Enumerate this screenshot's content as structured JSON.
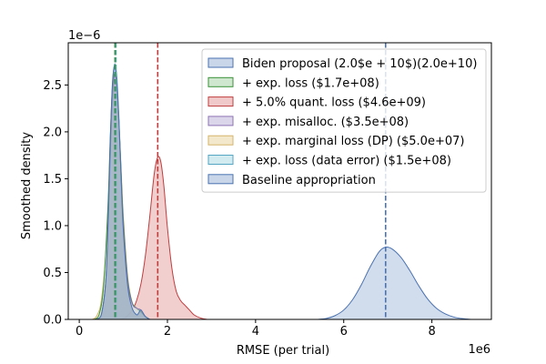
{
  "chart_data": {
    "type": "area",
    "title": "",
    "xlabel": "RMSE (per trial)",
    "ylabel": "Smoothed density",
    "x_offset_label": "1e6",
    "y_offset_label": "1e−6",
    "xlim": [
      -0.25,
      9.35
    ],
    "ylim": [
      0,
      2.95
    ],
    "x_unit_multiplier": 1000000,
    "y_unit_multiplier": 1e-06,
    "x_ticks": [
      0,
      2,
      4,
      6,
      8
    ],
    "x_tick_labels": [
      "0",
      "2",
      "4",
      "6",
      "8"
    ],
    "y_ticks": [
      0.0,
      0.5,
      1.0,
      1.5,
      2.0,
      2.5
    ],
    "y_tick_labels": [
      "0.0",
      "0.5",
      "1.0",
      "1.5",
      "2.0",
      "2.5"
    ],
    "legend_position": "top-right",
    "legend": [
      {
        "label": "Biden proposal (2.0$e + 10$)(2.0e+10)",
        "fill": "#c9d6ea",
        "stroke": "#4a72b0"
      },
      {
        "label": "+ exp. loss ($1.7e+08)",
        "fill": "#cfe6cf",
        "stroke": "#3a923a"
      },
      {
        "label": "+ 5.0% quant. loss ($4.6e+09)",
        "fill": "#f0caca",
        "stroke": "#c03d3e"
      },
      {
        "label": "+ exp. misalloc. ($3.5e+08)",
        "fill": "#dcd6ea",
        "stroke": "#8c73b4"
      },
      {
        "label": "+ exp. marginal loss (DP) ($5.0e+07)",
        "fill": "#f3e8cc",
        "stroke": "#d4b46a"
      },
      {
        "label": "+ exp. loss (data error) ($1.5e+08)",
        "fill": "#d1ebf1",
        "stroke": "#54a6c2"
      },
      {
        "label": "Baseline appropriation",
        "fill": "#c9d6ea",
        "stroke": "#4a72b0"
      }
    ],
    "series": [
      {
        "name": "Biden proposal (2.0$e + 10$)(2.0e+10)",
        "color": "#4a72b0",
        "fill": "#c9d6ea",
        "fill_opacity": 0.85,
        "x": [
          5.4,
          5.6,
          5.8,
          6.0,
          6.2,
          6.4,
          6.6,
          6.8,
          6.95,
          7.1,
          7.3,
          7.5,
          7.7,
          7.9,
          8.1,
          8.3,
          8.5,
          8.7,
          8.9
        ],
        "y": [
          0.0,
          0.01,
          0.04,
          0.1,
          0.21,
          0.37,
          0.56,
          0.72,
          0.77,
          0.75,
          0.66,
          0.52,
          0.36,
          0.22,
          0.12,
          0.06,
          0.025,
          0.008,
          0.0
        ]
      },
      {
        "name": "+ 5.0% quant. loss ($4.6e+09)",
        "color": "#c03d3e",
        "fill": "#f0caca",
        "fill_opacity": 0.9,
        "x": [
          0.9,
          1.05,
          1.2,
          1.3,
          1.4,
          1.5,
          1.6,
          1.7,
          1.78,
          1.85,
          1.92,
          2.0,
          2.1,
          2.2,
          2.3,
          2.4,
          2.5,
          2.6,
          2.75,
          2.9
        ],
        "y": [
          0.0,
          0.02,
          0.1,
          0.2,
          0.38,
          0.68,
          1.1,
          1.55,
          1.73,
          1.68,
          1.42,
          0.98,
          0.55,
          0.3,
          0.2,
          0.15,
          0.1,
          0.05,
          0.015,
          0.0
        ]
      },
      {
        "name": "+ exp. marginal loss (DP) ($5.0e+07)",
        "color": "#d4b46a",
        "fill": "#f3e8cc",
        "fill_opacity": 0.55,
        "x": [
          0.3,
          0.4,
          0.5,
          0.6,
          0.7,
          0.75,
          0.8,
          0.85,
          0.9,
          0.95,
          1.0,
          1.1,
          1.2,
          1.3,
          1.4,
          1.5,
          1.6
        ],
        "y": [
          0.0,
          0.04,
          0.2,
          0.7,
          1.7,
          2.25,
          2.5,
          2.45,
          2.1,
          1.6,
          1.1,
          0.45,
          0.18,
          0.1,
          0.07,
          0.03,
          0.0
        ]
      },
      {
        "name": "+ exp. loss (data error) ($1.5e+08)",
        "color": "#54a6c2",
        "fill": "#d1ebf1",
        "fill_opacity": 0.55,
        "x": [
          0.4,
          0.5,
          0.6,
          0.65,
          0.7,
          0.75,
          0.8,
          0.85,
          0.9,
          0.95,
          1.0,
          1.1,
          1.2,
          1.3,
          1.4,
          1.5,
          1.6
        ],
        "y": [
          0.0,
          0.05,
          0.4,
          0.9,
          1.7,
          2.45,
          2.72,
          2.6,
          2.15,
          1.55,
          1.0,
          0.4,
          0.17,
          0.12,
          0.08,
          0.03,
          0.0
        ]
      },
      {
        "name": "+ exp. loss ($1.7e+08)",
        "color": "#3a923a",
        "fill": "#cfe6cf",
        "fill_opacity": 0.45,
        "x": [
          0.35,
          0.45,
          0.55,
          0.65,
          0.7,
          0.75,
          0.8,
          0.85,
          0.9,
          0.95,
          1.0,
          1.1,
          1.2,
          1.3,
          1.4,
          1.5,
          1.6
        ],
        "y": [
          0.0,
          0.05,
          0.35,
          1.2,
          1.9,
          2.45,
          2.62,
          2.5,
          2.1,
          1.55,
          1.05,
          0.42,
          0.18,
          0.12,
          0.08,
          0.03,
          0.0
        ]
      },
      {
        "name": "+ exp. misalloc. ($3.5e+08)",
        "color": "#8c73b4",
        "fill": "#dcd6ea",
        "fill_opacity": 0.45,
        "x": [
          0.4,
          0.5,
          0.6,
          0.65,
          0.7,
          0.75,
          0.8,
          0.85,
          0.9,
          0.95,
          1.0,
          1.1,
          1.2,
          1.3,
          1.4,
          1.5,
          1.6
        ],
        "y": [
          0.0,
          0.05,
          0.4,
          0.95,
          1.75,
          2.35,
          2.6,
          2.5,
          2.1,
          1.5,
          1.0,
          0.4,
          0.17,
          0.12,
          0.1,
          0.03,
          0.0
        ]
      },
      {
        "name": "Baseline appropriation",
        "color": "#4a72b0",
        "fill": "#7d96b3",
        "fill_opacity": 0.55,
        "x": [
          0.4,
          0.5,
          0.6,
          0.65,
          0.7,
          0.75,
          0.8,
          0.85,
          0.9,
          0.95,
          1.0,
          1.1,
          1.2,
          1.3,
          1.35,
          1.4,
          1.5,
          1.6
        ],
        "y": [
          0.0,
          0.05,
          0.4,
          1.0,
          1.85,
          2.5,
          2.7,
          2.55,
          2.1,
          1.5,
          0.95,
          0.35,
          0.12,
          0.05,
          0.07,
          0.1,
          0.03,
          0.0
        ]
      }
    ],
    "reference_lines": [
      {
        "x": 6.95,
        "color": "#4a72b0",
        "style": "dashed"
      },
      {
        "x": 1.78,
        "color": "#c03d3e",
        "style": "dashed"
      },
      {
        "x": 0.83,
        "color": "#4a72b0",
        "style": "dashed"
      },
      {
        "x": 0.83,
        "color": "#54a6c2",
        "style": "dashed"
      },
      {
        "x": 0.81,
        "color": "#3a923a",
        "style": "dashed"
      }
    ]
  }
}
